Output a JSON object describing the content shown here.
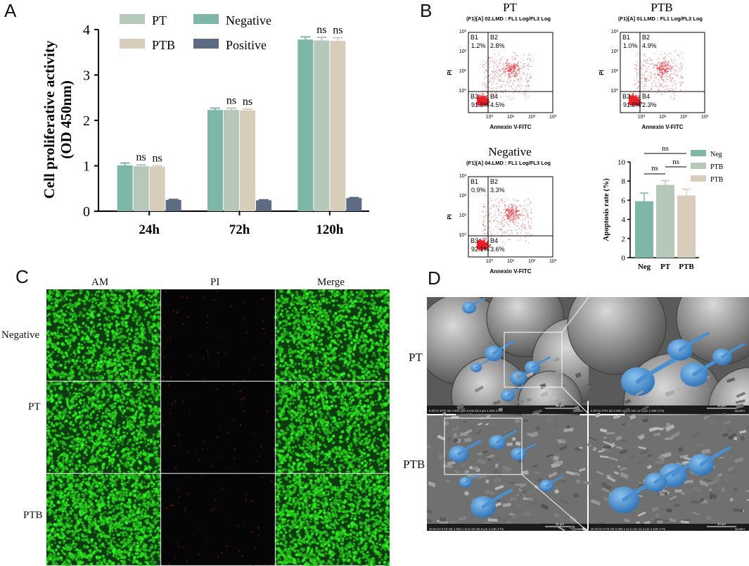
{
  "panels": {
    "a": "A",
    "b": "B",
    "c": "C",
    "d": "D"
  },
  "colors": {
    "negative": "#7eb6a7",
    "pt": "#b5c8b9",
    "ptb": "#d8cdbb",
    "positive": "#5e6c83",
    "dots": "#e8202a",
    "green": "#22c02c",
    "sem_cell": "#4a90d0"
  },
  "chart_data": [
    {
      "type": "bar",
      "title": "",
      "ylabel": "Cell proliferative activity (OD 450nm)",
      "ylabel_lines": [
        "Cell proliferative activity",
        "(OD 450nm)"
      ],
      "xlabel": "",
      "categories": [
        "24h",
        "72h",
        "120h"
      ],
      "ylim": [
        0,
        4
      ],
      "yticks": [
        "0",
        "1",
        "2",
        "3",
        "4"
      ],
      "legend": [
        "PT",
        "Negative",
        "PTB",
        "Positive"
      ],
      "legend_placement": "top",
      "series": [
        {
          "name": "Negative",
          "values": [
            1.01,
            2.23,
            3.78
          ],
          "errors": [
            0.05,
            0.04,
            0.06
          ]
        },
        {
          "name": "PT",
          "values": [
            0.99,
            2.23,
            3.76
          ],
          "errors": [
            0.03,
            0.04,
            0.07
          ]
        },
        {
          "name": "PTB",
          "values": [
            0.98,
            2.22,
            3.75
          ],
          "errors": [
            0.02,
            0.03,
            0.07
          ]
        },
        {
          "name": "Positive",
          "values": [
            0.25,
            0.24,
            0.29
          ],
          "errors": [
            0.01,
            0.01,
            0.01
          ]
        }
      ],
      "annotations": [
        "ns",
        "ns",
        "ns",
        "ns",
        "ns",
        "ns"
      ]
    },
    {
      "type": "scatter",
      "title": "PT",
      "header": "(F1)[A] 02.LMD : FL1 Log/FL3 Log",
      "xlabel": "Annexin V-FITC",
      "ylabel": "PI",
      "axis_scale": "log",
      "xticks": [
        "10⁰",
        "10¹",
        "10²",
        "10³"
      ],
      "yticks": [
        "10⁰",
        "10¹",
        "10²",
        "10³"
      ],
      "quadrants": [
        {
          "label": "B1",
          "value": "1.2%"
        },
        {
          "label": "B2",
          "value": "2.8%"
        },
        {
          "label": "B3",
          "value": "91.5%"
        },
        {
          "label": "B4",
          "value": "4.5%"
        }
      ]
    },
    {
      "type": "scatter",
      "title": "PTB",
      "header": "(F1)[A] 01.LMD : FL1 Log/FL3 Log",
      "xlabel": "Annexin V-FITC",
      "ylabel": "PI",
      "axis_scale": "log",
      "xticks": [
        "10⁰",
        "10¹",
        "10²",
        "10³"
      ],
      "yticks": [
        "10⁰",
        "10¹",
        "10²",
        "10³"
      ],
      "quadrants": [
        {
          "label": "B1",
          "value": "1.0%"
        },
        {
          "label": "B2",
          "value": "4.9%"
        },
        {
          "label": "B3",
          "value": "91.8%"
        },
        {
          "label": "B4",
          "value": "2.3%"
        }
      ]
    },
    {
      "type": "scatter",
      "title": "Negative",
      "header": "(F1)[A] 04.LMD : FL1 Log/FL3 Log",
      "xlabel": "Annexin V-FITC",
      "ylabel": "PI",
      "axis_scale": "log",
      "xticks": [
        "10⁰",
        "10¹",
        "10²",
        "10³"
      ],
      "yticks": [
        "10⁰",
        "10¹",
        "10²",
        "10³"
      ],
      "quadrants": [
        {
          "label": "B1",
          "value": "0.9%"
        },
        {
          "label": "B2",
          "value": "3.3%"
        },
        {
          "label": "B3",
          "value": "92.1%"
        },
        {
          "label": "B4",
          "value": "3.6%"
        }
      ]
    },
    {
      "type": "bar",
      "title": "",
      "ylabel": "Apoptosis rate (%)",
      "xlabel": "",
      "categories": [
        "Neg",
        "PT",
        "PTB"
      ],
      "ylim": [
        0,
        10
      ],
      "yticks": [
        "0",
        "2",
        "4",
        "6",
        "8",
        "10"
      ],
      "legend": [
        "Neg",
        "PTB",
        "PTB"
      ],
      "legend_placement": "right",
      "values": [
        5.9,
        7.6,
        6.5
      ],
      "errors": [
        0.85,
        0.45,
        0.65
      ],
      "annotations": [
        "ns",
        "ns",
        "ns"
      ]
    }
  ],
  "panel_c": {
    "columns": [
      "AM",
      "PI",
      "Merge"
    ],
    "rows": [
      "Negative",
      "PT",
      "PTB"
    ]
  },
  "panel_d": {
    "rows": [
      "PT",
      "PTB"
    ],
    "scalebar_top_left": "30 µm",
    "scalebar_top_right": "10 µm",
    "scalebar_bottom_left": "30 µm",
    "scalebar_bottom_right": "10 µm",
    "info_top_left": "5.00 kV  ETD  SE  2 500 x  11.9 mm  82.9 µm  1.04E-3 Pa",
    "info_top_right": "5.00 kV  ETD  SE  5 000 x  12.0 mm  41.4 µm  1.05E-3 Pa",
    "info_bottom_left": "20.00 kV  ETD  SE  2 500 x  11.0 mm  82.9 µm  4.12E-4 Pa",
    "info_bottom_right": "20.00 kV  ETD  SE  5 000 x  11.0 mm  41.4 µm  4.10E-4 Pa",
    "brand": "Quattro"
  }
}
